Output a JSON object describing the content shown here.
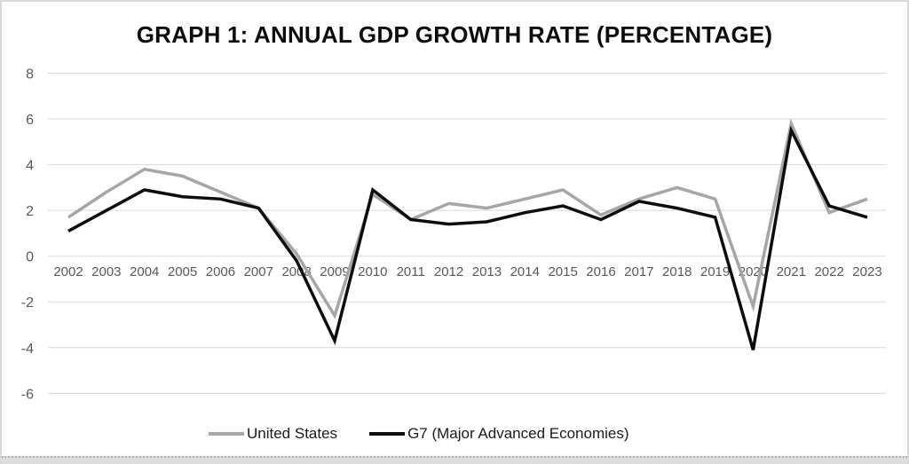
{
  "chart_data": {
    "type": "line",
    "title": "GRAPH 1: ANNUAL GDP GROWTH RATE (PERCENTAGE)",
    "categories": [
      "2002",
      "2003",
      "2004",
      "2005",
      "2006",
      "2007",
      "2008",
      "2009",
      "2010",
      "2011",
      "2012",
      "2013",
      "2014",
      "2015",
      "2016",
      "2017",
      "2018",
      "2019",
      "2020",
      "2021",
      "2022",
      "2023"
    ],
    "series": [
      {
        "name": "United States",
        "color": "#a6a6a6",
        "values": [
          1.7,
          2.8,
          3.8,
          3.5,
          2.8,
          2.1,
          0.1,
          -2.6,
          2.7,
          1.6,
          2.3,
          2.1,
          2.5,
          2.9,
          1.8,
          2.5,
          3.0,
          2.5,
          -2.2,
          5.8,
          1.9,
          2.5
        ]
      },
      {
        "name": "G7 (Major Advanced Economies)",
        "color": "#0d0d0d",
        "values": [
          1.1,
          2.0,
          2.9,
          2.6,
          2.5,
          2.1,
          -0.2,
          -3.7,
          2.9,
          1.6,
          1.4,
          1.5,
          1.9,
          2.2,
          1.6,
          2.4,
          2.1,
          1.7,
          -4.1,
          5.5,
          2.2,
          1.7
        ]
      }
    ],
    "xlabel": "",
    "ylabel": "",
    "ylim": [
      -6,
      8
    ],
    "yticks": [
      8,
      6,
      4,
      2,
      0,
      -2,
      -4,
      -6
    ],
    "grid": "horizontal",
    "legend_position": "bottom",
    "gridline_color": "#d9d9d9",
    "tick_label_color": "#595959"
  }
}
